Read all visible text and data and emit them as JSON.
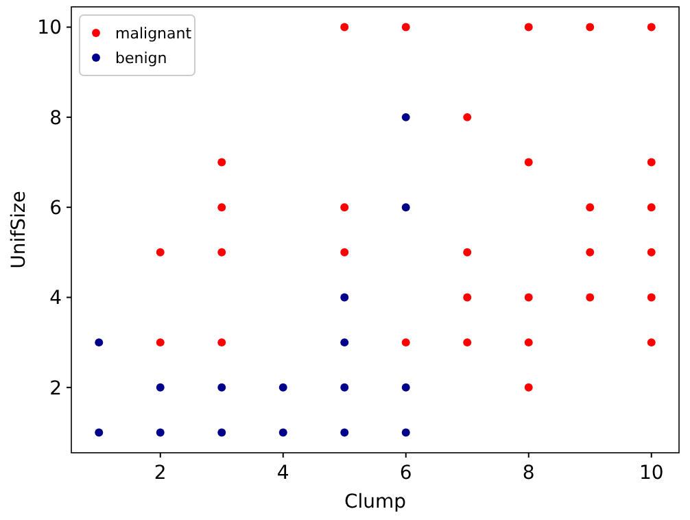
{
  "chart_data": {
    "type": "scatter",
    "xlabel": "Clump",
    "ylabel": "UnifSize",
    "xlim": [
      0.55,
      10.45
    ],
    "ylim": [
      0.55,
      10.45
    ],
    "xticks": [
      2,
      4,
      6,
      8,
      10
    ],
    "yticks": [
      2,
      4,
      6,
      8,
      10
    ],
    "legend": "top left",
    "marker": "circle",
    "grid": false,
    "series": [
      {
        "name": "malignant",
        "color": "#ff0000",
        "x": [
          2,
          2,
          3,
          3,
          3,
          3,
          5,
          5,
          5,
          6,
          6,
          7,
          7,
          7,
          7,
          8,
          8,
          8,
          8,
          8,
          9,
          9,
          9,
          9,
          10,
          10,
          10,
          10,
          10,
          10
        ],
        "values": [
          5,
          3,
          7,
          6,
          5,
          3,
          10,
          6,
          5,
          10,
          3,
          8,
          5,
          4,
          3,
          10,
          7,
          4,
          3,
          2,
          10,
          6,
          5,
          4,
          10,
          7,
          6,
          5,
          4,
          3
        ]
      },
      {
        "name": "benign",
        "color": "#00008b",
        "x": [
          1,
          1,
          2,
          2,
          3,
          3,
          4,
          4,
          5,
          5,
          5,
          5,
          6,
          6,
          6,
          6
        ],
        "values": [
          3,
          1,
          2,
          1,
          2,
          1,
          2,
          1,
          4,
          3,
          2,
          1,
          8,
          6,
          2,
          1
        ]
      }
    ]
  }
}
